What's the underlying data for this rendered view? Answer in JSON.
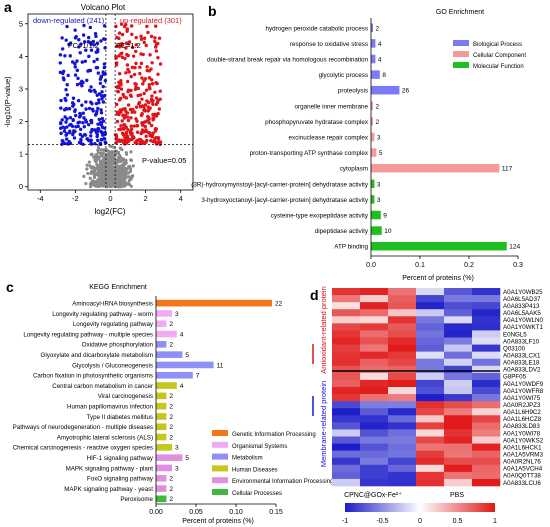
{
  "panels": [
    {
      "letter": "a"
    },
    {
      "letter": "b"
    },
    {
      "letter": "c"
    },
    {
      "letter": "d"
    }
  ],
  "colors": {
    "biological": "#7b7cf5",
    "cellular": "#f59a9a",
    "molecular": "#1fbf1f",
    "genetic": "#f47418",
    "organismal": "#f2aaf2",
    "metabolism": "#8f8ff7",
    "human": "#c6c61c",
    "environmental": "#e08ee0",
    "cellularproc": "#3fb83f",
    "up": "#e0141a",
    "down": "#1414d8",
    "ns": "#8a8a8a"
  },
  "chart_data": [
    {
      "type": "scatter",
      "title": "Volcano Plot",
      "xlabel": "log2(FC)",
      "ylabel": "-log10(P-value)",
      "xlim": [
        -4.7,
        4.7
      ],
      "ylim": [
        -0.1,
        5.3
      ],
      "xticks": [
        "-4",
        "-2",
        "0",
        "2",
        "4"
      ],
      "yticks": [
        "0",
        "1",
        "2",
        "3",
        "4",
        "5"
      ],
      "legend": {
        "down": "down-regulated (241)",
        "up": "up-regulated (301)"
      },
      "annotations": {
        "fc_left": "FC=1/1.2",
        "fc_right": "FC=1.2",
        "pvalue": "P-value=0.05"
      },
      "thresholds": {
        "fc_left": -0.263,
        "fc_right": 0.263,
        "p_line": 1.301
      },
      "groups": {
        "up": 301,
        "down": 241
      },
      "series": [
        {
          "name": "down-regulated (241)"
        },
        {
          "name": "up-regulated (301)"
        }
      ]
    },
    {
      "type": "bar",
      "title": "GO Enrichment",
      "xlabel": "Percent of proteins (%)",
      "xlim": [
        0,
        0.3
      ],
      "xticks": [
        "0.0",
        "0.1",
        "0.2",
        "0.3"
      ],
      "legend": [
        "Biological Process",
        "Cellular Component",
        "Molecular Function"
      ],
      "categories": [
        "hydrogen peroxide catabolic process",
        "response to oxidative stress",
        "double-strand break repair via homologous recombination",
        "glycolytic process",
        "proteolysis",
        "organelle inner membrane",
        "phosphopyruvate hydratase complex",
        "excinuclease repair complex",
        "proton-transporting ATP synthase complex",
        "cytoplasm",
        "(3R)-hydroxymyristoyl-[acyl-carrier-protein] dehydratase activity",
        "3-hydroxyoctanoyl-[acyl-carrier-protein] dehydratase activity",
        "cysteine-type exopeptidase activity",
        "dipeptidase activity",
        "ATP binding"
      ],
      "counts": [
        "2",
        "4",
        "4",
        "8",
        "26",
        "2",
        "2",
        "3",
        "5",
        "117",
        "3",
        "3",
        "9",
        "10",
        "124"
      ],
      "values": [
        0.004,
        0.009,
        0.009,
        0.018,
        0.058,
        0.004,
        0.004,
        0.007,
        0.011,
        0.262,
        0.007,
        0.007,
        0.02,
        0.022,
        0.277
      ],
      "groups": [
        "biological",
        "biological",
        "biological",
        "biological",
        "biological",
        "cellular",
        "cellular",
        "cellular",
        "cellular",
        "cellular",
        "molecular",
        "molecular",
        "molecular",
        "molecular",
        "molecular"
      ]
    },
    {
      "type": "bar",
      "title": "KEGG Enrichment",
      "xlabel": "Percent of proteins (%)",
      "xlim": [
        0,
        0.15
      ],
      "xticks": [
        "0.00",
        "0.05",
        "0.10",
        "0.15"
      ],
      "legend": [
        "Genetic Information Processing",
        "Organismal Systems",
        "Metabolism",
        "Human Diseases",
        "Environmental Information Processing",
        "Cellular Processes"
      ],
      "categories": [
        "Aminoacyl-tRNA biosynthesis",
        "Longevity regulating pathway - worm",
        "Longevity regulating pathway",
        "Longevity regulating pathway - multiple species",
        "Oxidative phosphorylation",
        "Glyoxylate and dicarboxylate metabolism",
        "Glycolysis / Gluconeogenesis",
        "Carbon fixation in photosynthetic organisms",
        "Central carbon metabolism in cancer",
        "Viral carcinogenesis",
        "Human papillomavirus infection",
        "Type II diabetes mellitus",
        "Pathways of neurodegeneration - multiple diseases",
        "Amyotrophic lateral sclerosis (ALS)",
        "Chemical carcinogenesis - reactive oxygen species",
        "HIF-1 signaling pathway",
        "MAPK signaling pathway - plant",
        "FoxO signaling pathway",
        "MAPK signaling pathway - yeast",
        "Peroxisome"
      ],
      "counts": [
        "22",
        "3",
        "2",
        "4",
        "2",
        "5",
        "11",
        "7",
        "4",
        "2",
        "2",
        "2",
        "2",
        "2",
        "3",
        "5",
        "3",
        "2",
        "2",
        "2"
      ],
      "values": [
        0.145,
        0.02,
        0.013,
        0.026,
        0.013,
        0.033,
        0.072,
        0.046,
        0.026,
        0.013,
        0.013,
        0.013,
        0.013,
        0.013,
        0.02,
        0.033,
        0.02,
        0.013,
        0.013,
        0.013
      ],
      "groups": [
        "genetic",
        "organismal",
        "organismal",
        "organismal",
        "metabolism",
        "metabolism",
        "metabolism",
        "metabolism",
        "human",
        "human",
        "human",
        "human",
        "human",
        "human",
        "human",
        "environmental",
        "environmental",
        "environmental",
        "environmental",
        "cellularproc"
      ]
    },
    {
      "type": "heatmap",
      "rows": [
        "A0A1Y0WB25",
        "A0A6L5AD37",
        "A0A833P413",
        "A0A6L5AAK5",
        "A0A1Y0WLN0",
        "A0A1Y0WKT1",
        "E0NGL5",
        "A0A833LF10",
        "Q03100",
        "A0A833LCX1",
        "A0A833LE18",
        "A0A833LDV2",
        "G8PF05",
        "A0A1Y0WDF9",
        "A0A1Y0WFR8",
        "A0A1Y0WI75",
        "A0A0R2JPZ3",
        "A0A1L6H9C2",
        "A0A1L6HCZ8",
        "A0A833LD83",
        "A0A1Y0WI78",
        "A0A1Y0WKS2",
        "A0A1L6HCK1",
        "A0A1A5VRM3",
        "A0A0R2NL76",
        "A0A1A5VCH4",
        "A0A0Q0TT38",
        "A0A833LCU6"
      ],
      "group_labels": [
        "Antioxidant-related protein",
        "Membrane-related protein"
      ],
      "xlabels": [
        "CPNC@GOx-Fe²⁺",
        "PBS"
      ],
      "colorbar": {
        "ticks": [
          "-1",
          "-0.5",
          "0",
          "0.5",
          "1"
        ],
        "range": [
          -1,
          1
        ]
      }
    }
  ]
}
